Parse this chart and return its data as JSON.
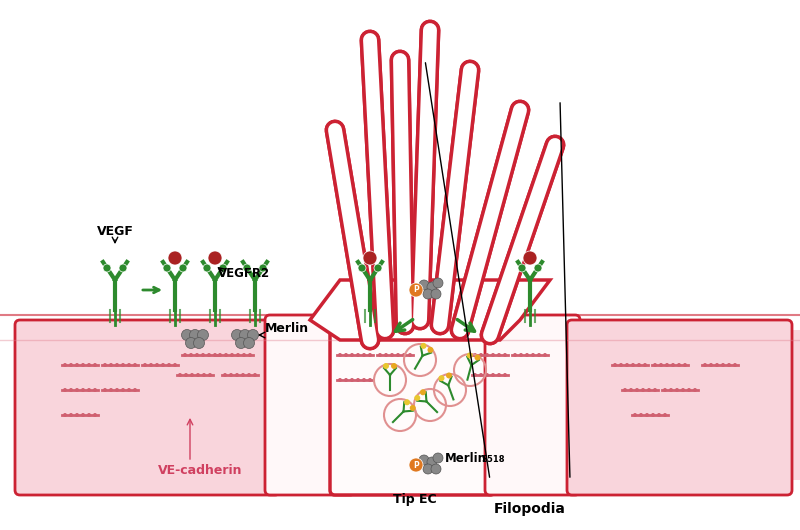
{
  "bg_color": "#ffffff",
  "cell_color": "#f5b8c4",
  "cell_outline": "#cc2233",
  "cell_fill_light": "#f9d5dc",
  "green_color": "#2d8a2d",
  "red_dot_color": "#aa2222",
  "orange_color": "#e07820",
  "yellow_dot": "#e8c830",
  "gray_color": "#888888",
  "pink_label": "#d04060",
  "arrow_green": "#2d8a2d",
  "labels": {
    "filopodia": "Filopodia",
    "vegf": "VEGF",
    "vegfr2": "VEGFR2",
    "merlin": "Merlin",
    "merlin_s518": "Merlin",
    "ve_cadherin": "VE-cadherin",
    "tip_ec": "Tip EC"
  }
}
